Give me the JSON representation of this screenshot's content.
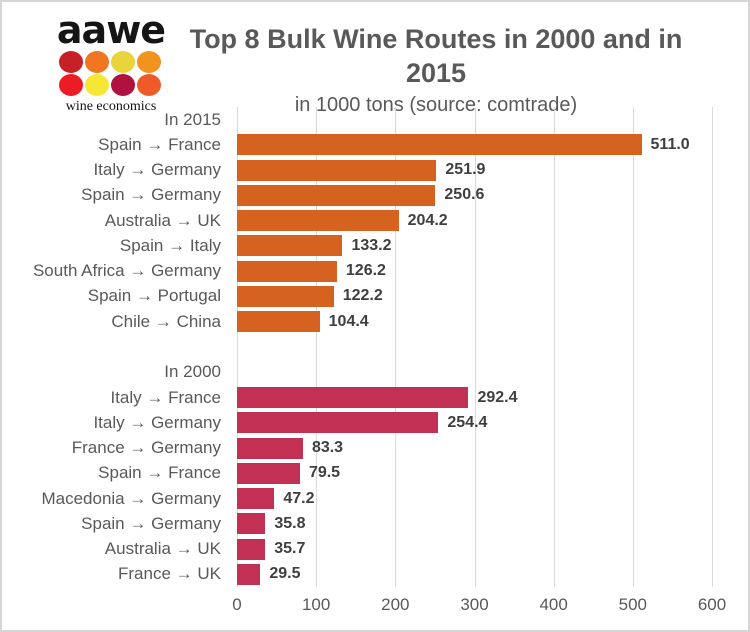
{
  "logo": {
    "brand": "aawe",
    "tagline": "wine economics",
    "dot_colors": [
      "#C62127",
      "#F07622",
      "#EAD43C",
      "#F0931F",
      "#EC1C24",
      "#F6E636",
      "#B0123F",
      "#EE5B28"
    ]
  },
  "header": {
    "title": "Top 8 Bulk Wine Routes in 2000 and in 2015",
    "subtitle": "in 1000 tons (source: comtrade)"
  },
  "chart_data": {
    "type": "bar",
    "orientation": "horizontal",
    "title": "Top 8 Bulk Wine Routes in 2000 and in 2015",
    "subtitle": "in 1000 tons (source: comtrade)",
    "unit": "1000 tons",
    "source": "comtrade",
    "xlim": [
      0,
      600
    ],
    "x_ticks": [
      0,
      100,
      200,
      300,
      400,
      500,
      600
    ],
    "x_tick_labels": [
      "0",
      "100",
      "200",
      "300",
      "400",
      "500",
      "600"
    ],
    "grid": true,
    "value_labels_shown": true,
    "colors": {
      "grid": "#d9d9d9",
      "label_text": "#595959",
      "value_text": "#3f3f3f"
    },
    "sections": [
      {
        "label": "In 2015",
        "color": "#D5621F",
        "rows": [
          {
            "route": "Spain → France",
            "value": 511.0,
            "value_label": "511.0"
          },
          {
            "route": "Italy → Germany",
            "value": 251.9,
            "value_label": "251.9"
          },
          {
            "route": "Spain → Germany",
            "value": 250.6,
            "value_label": "250.6"
          },
          {
            "route": "Australia → UK",
            "value": 204.2,
            "value_label": "204.2"
          },
          {
            "route": "Spain → Italy",
            "value": 133.2,
            "value_label": "133.2"
          },
          {
            "route": "South Africa → Germany",
            "value": 126.2,
            "value_label": "126.2"
          },
          {
            "route": "Spain → Portugal",
            "value": 122.2,
            "value_label": "122.2"
          },
          {
            "route": "Chile → China",
            "value": 104.4,
            "value_label": "104.4"
          }
        ]
      },
      {
        "label": "In 2000",
        "color": "#C23154",
        "rows": [
          {
            "route": "Italy → France",
            "value": 292.4,
            "value_label": "292.4"
          },
          {
            "route": "Italy → Germany",
            "value": 254.4,
            "value_label": "254.4"
          },
          {
            "route": "France → Germany",
            "value": 83.3,
            "value_label": "83.3"
          },
          {
            "route": "Spain → France",
            "value": 79.5,
            "value_label": "79.5"
          },
          {
            "route": "Macedonia → Germany",
            "value": 47.2,
            "value_label": "47.2"
          },
          {
            "route": "Spain → Germany",
            "value": 35.8,
            "value_label": "35.8"
          },
          {
            "route": "Australia → UK",
            "value": 35.7,
            "value_label": "35.7"
          },
          {
            "route": "France → UK",
            "value": 29.5,
            "value_label": "29.5"
          }
        ]
      }
    ]
  }
}
